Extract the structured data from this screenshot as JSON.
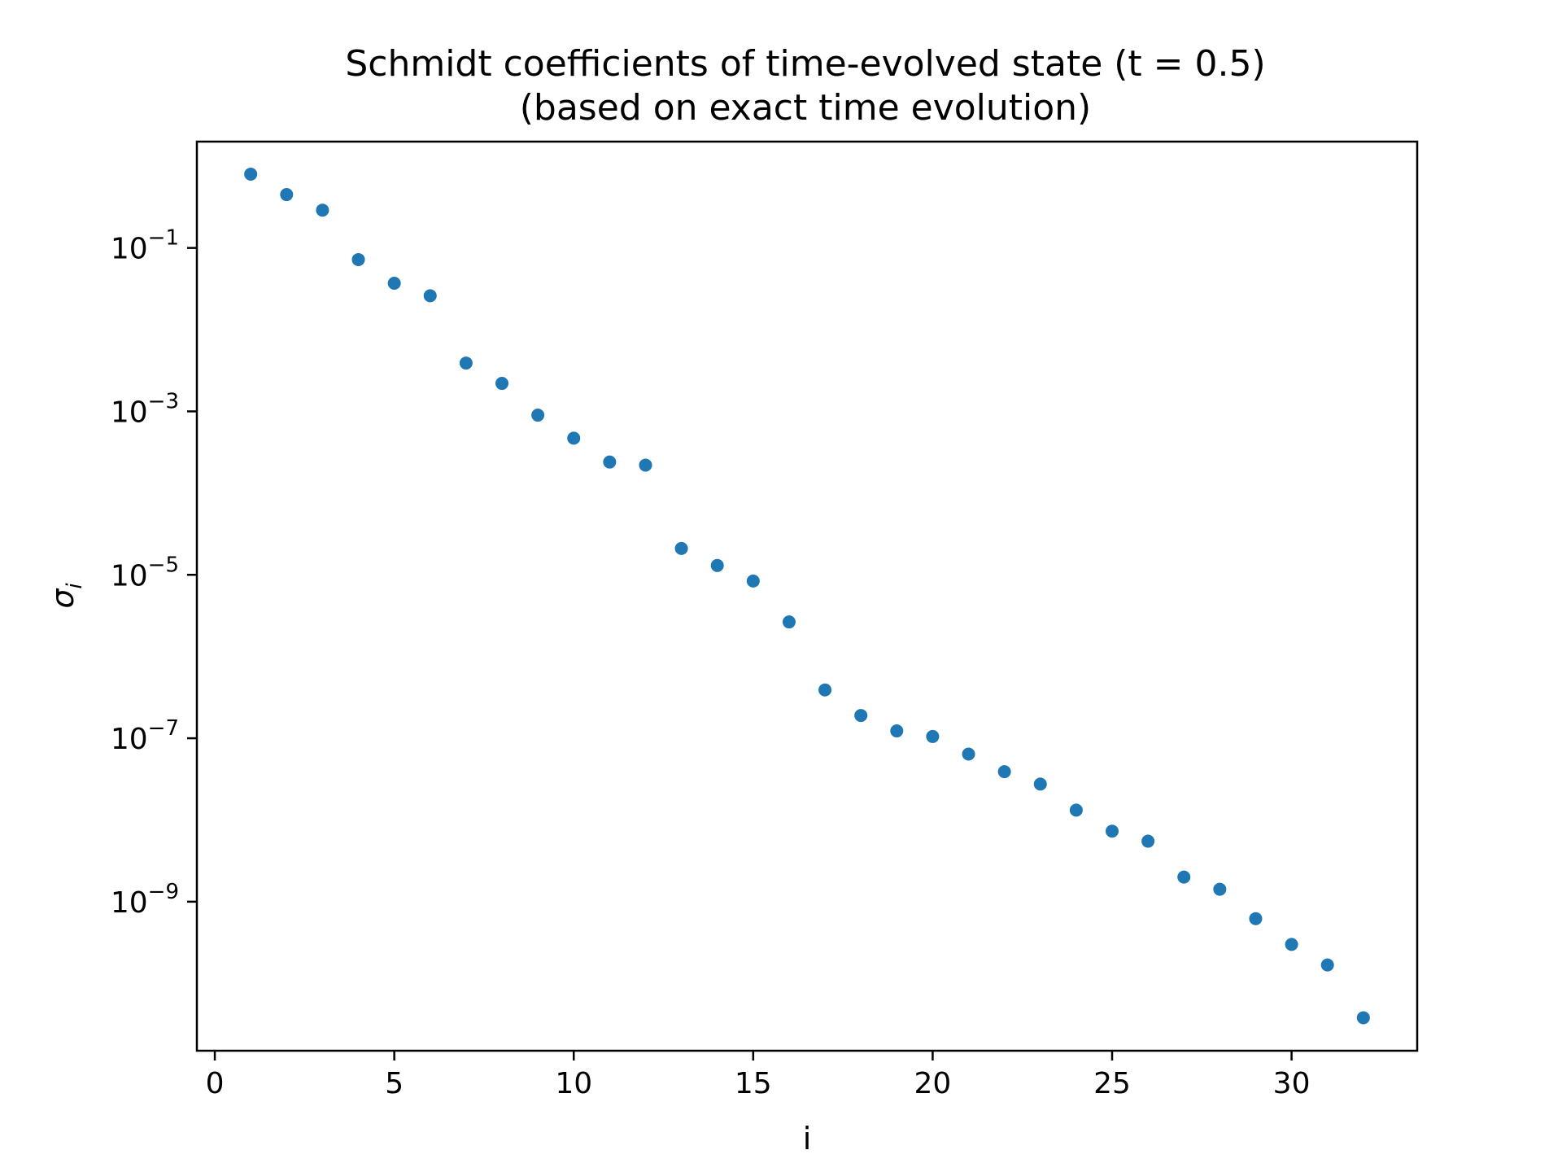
{
  "chart_data": {
    "type": "scatter",
    "title": "Schmidt coefficients of time-evolved state (t = 0.5)",
    "subtitle": "(based on exact time evolution)",
    "xlabel": "i",
    "ylabel": "σ",
    "ylabel_subscript": "i",
    "x_ticks": [
      "0",
      "5",
      "10",
      "15",
      "20",
      "25",
      "30"
    ],
    "y_ticks": [
      {
        "base": "10",
        "exp": "−1"
      },
      {
        "base": "10",
        "exp": "−3"
      },
      {
        "base": "10",
        "exp": "−5"
      },
      {
        "base": "10",
        "exp": "−7"
      },
      {
        "base": "10",
        "exp": "−9"
      }
    ],
    "y_scale": "log",
    "xlim": [
      -0.5,
      33.5
    ],
    "ylim": [
      1.5e-11,
      2.0
    ],
    "grid": false,
    "legend": "none",
    "marker_color": "#1f77b4",
    "x": [
      1,
      2,
      3,
      4,
      5,
      6,
      7,
      8,
      9,
      10,
      11,
      12,
      13,
      14,
      15,
      16,
      17,
      18,
      19,
      20,
      21,
      22,
      23,
      24,
      25,
      26,
      27,
      28,
      29,
      30,
      31,
      32
    ],
    "y": [
      0.8,
      0.45,
      0.29,
      0.072,
      0.037,
      0.026,
      0.0039,
      0.0022,
      0.0009,
      0.00047,
      0.00024,
      0.00022,
      2.1e-05,
      1.3e-05,
      8.4e-06,
      2.65e-06,
      3.9e-07,
      1.9e-07,
      1.23e-07,
      1.05e-07,
      6.4e-08,
      3.9e-08,
      2.75e-08,
      1.32e-08,
      7.3e-09,
      5.5e-09,
      2e-09,
      1.42e-09,
      6.2e-10,
      3e-10,
      1.68e-10,
      3.8e-11
    ]
  }
}
